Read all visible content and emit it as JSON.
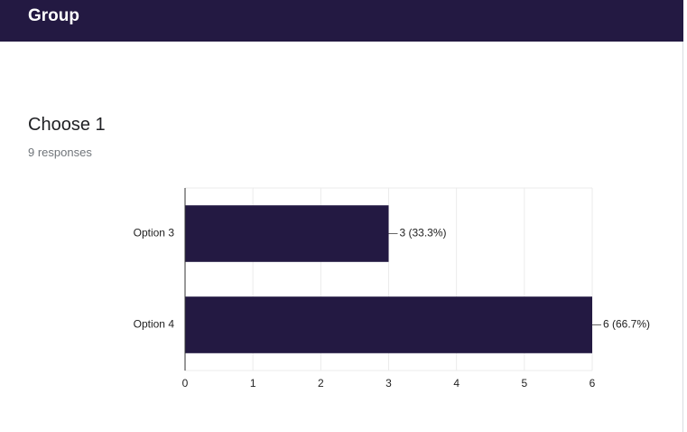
{
  "header": {
    "title": "Group"
  },
  "question": {
    "title": "Choose 1",
    "responses": "9 responses"
  },
  "chart_data": {
    "type": "bar",
    "orientation": "horizontal",
    "categories": [
      "Option 3",
      "Option 4"
    ],
    "values": [
      3,
      6
    ],
    "value_labels": [
      "3 (33.3%)",
      "6 (66.7%)"
    ],
    "color": "#231942",
    "xlim": [
      0,
      6
    ],
    "xticks": [
      0,
      1,
      2,
      3,
      4,
      5,
      6
    ],
    "grid": true
  }
}
